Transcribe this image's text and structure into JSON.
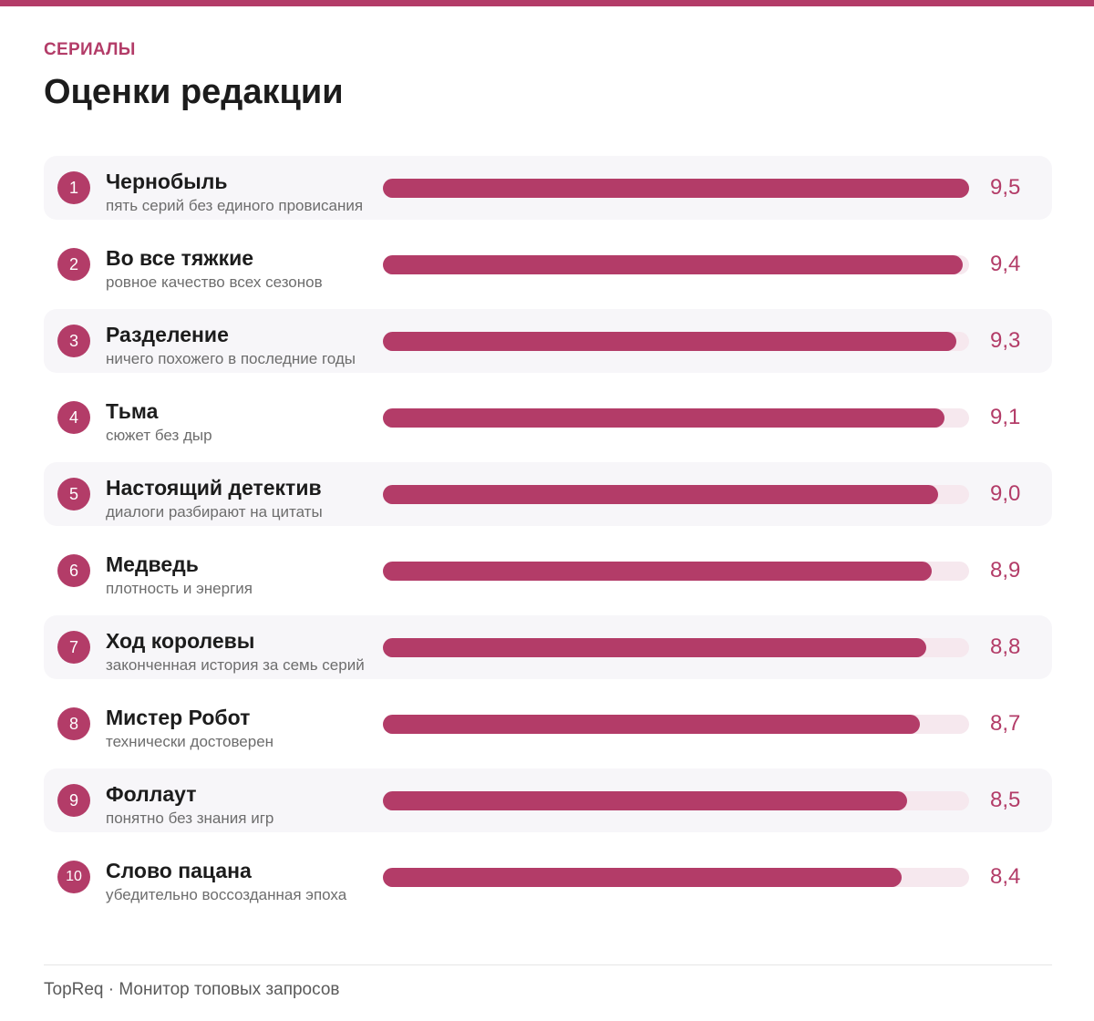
{
  "header": {
    "kicker": "СЕРИАЛЫ",
    "title": "Оценки редакции"
  },
  "colors": {
    "accent": "#b33c68",
    "track": "#f6e8ee",
    "row_shade": "#f7f6f9"
  },
  "chart_data": {
    "type": "bar",
    "orientation": "horizontal",
    "title": "Оценки редакции",
    "xlim": [
      0,
      9.5
    ],
    "categories": [
      "Чернобыль",
      "Во все тяжкие",
      "Разделение",
      "Тьма",
      "Настоящий детектив",
      "Медведь",
      "Ход королевы",
      "Мистер Робот",
      "Фоллаут",
      "Слово пацана"
    ],
    "values": [
      9.5,
      9.4,
      9.3,
      9.1,
      9.0,
      8.9,
      8.8,
      8.7,
      8.5,
      8.4
    ],
    "rows": [
      {
        "rank": "1",
        "name": "Чернобыль",
        "note": "пять серий без единого провисания",
        "value": 9.5,
        "label": "9,5"
      },
      {
        "rank": "2",
        "name": "Во все тяжкие",
        "note": "ровное качество всех сезонов",
        "value": 9.4,
        "label": "9,4"
      },
      {
        "rank": "3",
        "name": "Разделение",
        "note": "ничего похожего в последние годы",
        "value": 9.3,
        "label": "9,3"
      },
      {
        "rank": "4",
        "name": "Тьма",
        "note": "сюжет без дыр",
        "value": 9.1,
        "label": "9,1"
      },
      {
        "rank": "5",
        "name": "Настоящий детектив",
        "note": "диалоги разбирают на цитаты",
        "value": 9.0,
        "label": "9,0"
      },
      {
        "rank": "6",
        "name": "Медведь",
        "note": "плотность и энергия",
        "value": 8.9,
        "label": "8,9"
      },
      {
        "rank": "7",
        "name": "Ход королевы",
        "note": "законченная история за семь серий",
        "value": 8.8,
        "label": "8,8"
      },
      {
        "rank": "8",
        "name": "Мистер Робот",
        "note": "технически достоверен",
        "value": 8.7,
        "label": "8,7"
      },
      {
        "rank": "9",
        "name": "Фоллаут",
        "note": "понятно без знания игр",
        "value": 8.5,
        "label": "8,5"
      },
      {
        "rank": "10",
        "name": "Слово пацана",
        "note": "убедительно воссозданная эпоха",
        "value": 8.4,
        "label": "8,4"
      }
    ]
  },
  "footer": {
    "text": "TopReq · Монитор топовых запросов"
  }
}
